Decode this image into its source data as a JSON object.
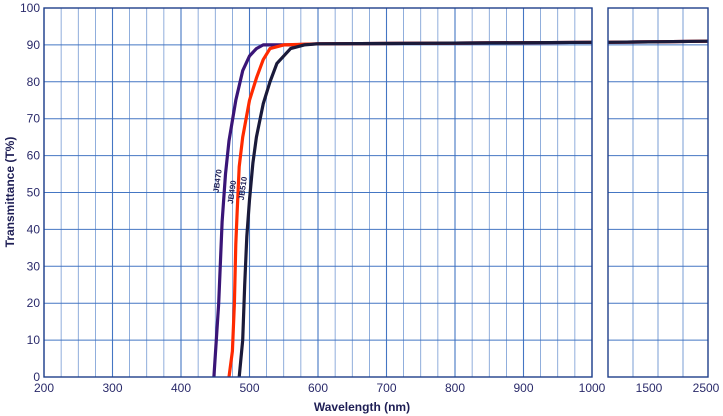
{
  "chart_data": {
    "type": "line",
    "title": "",
    "xlabel": "Wavelength (nm)",
    "ylabel": "Transmittance (T%)",
    "ylim": [
      0,
      100
    ],
    "y_ticks": [
      0,
      10,
      20,
      30,
      40,
      50,
      60,
      70,
      80,
      90,
      100
    ],
    "xlim_main": [
      200,
      1000
    ],
    "x_ticks_main": [
      200,
      300,
      400,
      500,
      600,
      700,
      800,
      900,
      1000
    ],
    "x_ticks_break": [
      1500,
      2500
    ],
    "grid": true,
    "colors": {
      "grid": "#3b6fc0",
      "JB470": "#3a1577",
      "JB490": "#ff2a00",
      "JB510": "#1a1a3a"
    },
    "series": [
      {
        "name": "JB470",
        "x": [
          448,
          455,
          460,
          465,
          470,
          480,
          490,
          500,
          510,
          520,
          540,
          560,
          600,
          800,
          1000,
          1500,
          2500
        ],
        "y": [
          0,
          20,
          42,
          55,
          64,
          75,
          83,
          87,
          89,
          90,
          90,
          90,
          90.3,
          90.5,
          90.7,
          90.8,
          91
        ]
      },
      {
        "name": "JB490",
        "x": [
          470,
          475,
          478,
          480,
          482,
          485,
          490,
          500,
          510,
          520,
          530,
          550,
          600,
          800,
          1000,
          1500,
          2500
        ],
        "y": [
          0,
          7,
          20,
          36,
          45,
          57,
          65,
          75,
          81,
          86,
          89,
          90,
          90.3,
          90.5,
          90.7,
          90.8,
          91
        ]
      },
      {
        "name": "JB510",
        "x": [
          485,
          490,
          493,
          496,
          500,
          505,
          510,
          520,
          530,
          540,
          560,
          580,
          600,
          800,
          1000,
          1500,
          2500
        ],
        "y": [
          0,
          10,
          25,
          38,
          48,
          58,
          65,
          74,
          80,
          85,
          89,
          90,
          90.3,
          90.5,
          90.7,
          90.8,
          91
        ]
      }
    ]
  }
}
